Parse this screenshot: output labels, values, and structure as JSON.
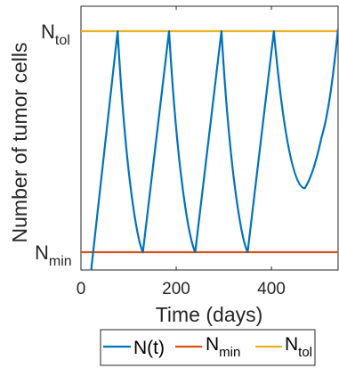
{
  "chart_data": {
    "type": "line",
    "xlabel": "Time (days)",
    "ylabel": "Number of tumor cells",
    "xlim": [
      0,
      540
    ],
    "ylim": [
      0,
      1
    ],
    "x_ticks": [
      0,
      200,
      400
    ],
    "x_tick_labels": [
      "0",
      "200",
      "400"
    ],
    "y_tick_labels": [
      {
        "main": "N",
        "sub": "tol",
        "level": 0.9
      },
      {
        "main": "N",
        "sub": "min",
        "level": 0.07
      }
    ],
    "grid": false,
    "legend_position": "bottom-outside",
    "series": [
      {
        "name": "N(t)",
        "color": "#0072BD",
        "x": [
          20,
          77,
          130,
          185,
          240,
          295,
          350,
          405,
          470,
          505,
          540
        ],
        "y": [
          -0.02,
          0.9,
          0.07,
          0.9,
          0.07,
          0.9,
          0.07,
          0.9,
          0.31,
          0.5,
          0.91
        ],
        "segment_shape": [
          "linear",
          "concave",
          "linear",
          "concave",
          "linear",
          "concave",
          "linear",
          "decay",
          "rise",
          "rise"
        ]
      },
      {
        "name": "N_min",
        "display": {
          "main": "N",
          "sub": "min"
        },
        "color": "#D95319",
        "x": [
          0,
          540
        ],
        "y": [
          0.07,
          0.07
        ]
      },
      {
        "name": "N_tol",
        "display": {
          "main": "N",
          "sub": "tol"
        },
        "color": "#EDB120",
        "x": [
          0,
          540
        ],
        "y": [
          0.9,
          0.9
        ]
      }
    ]
  }
}
